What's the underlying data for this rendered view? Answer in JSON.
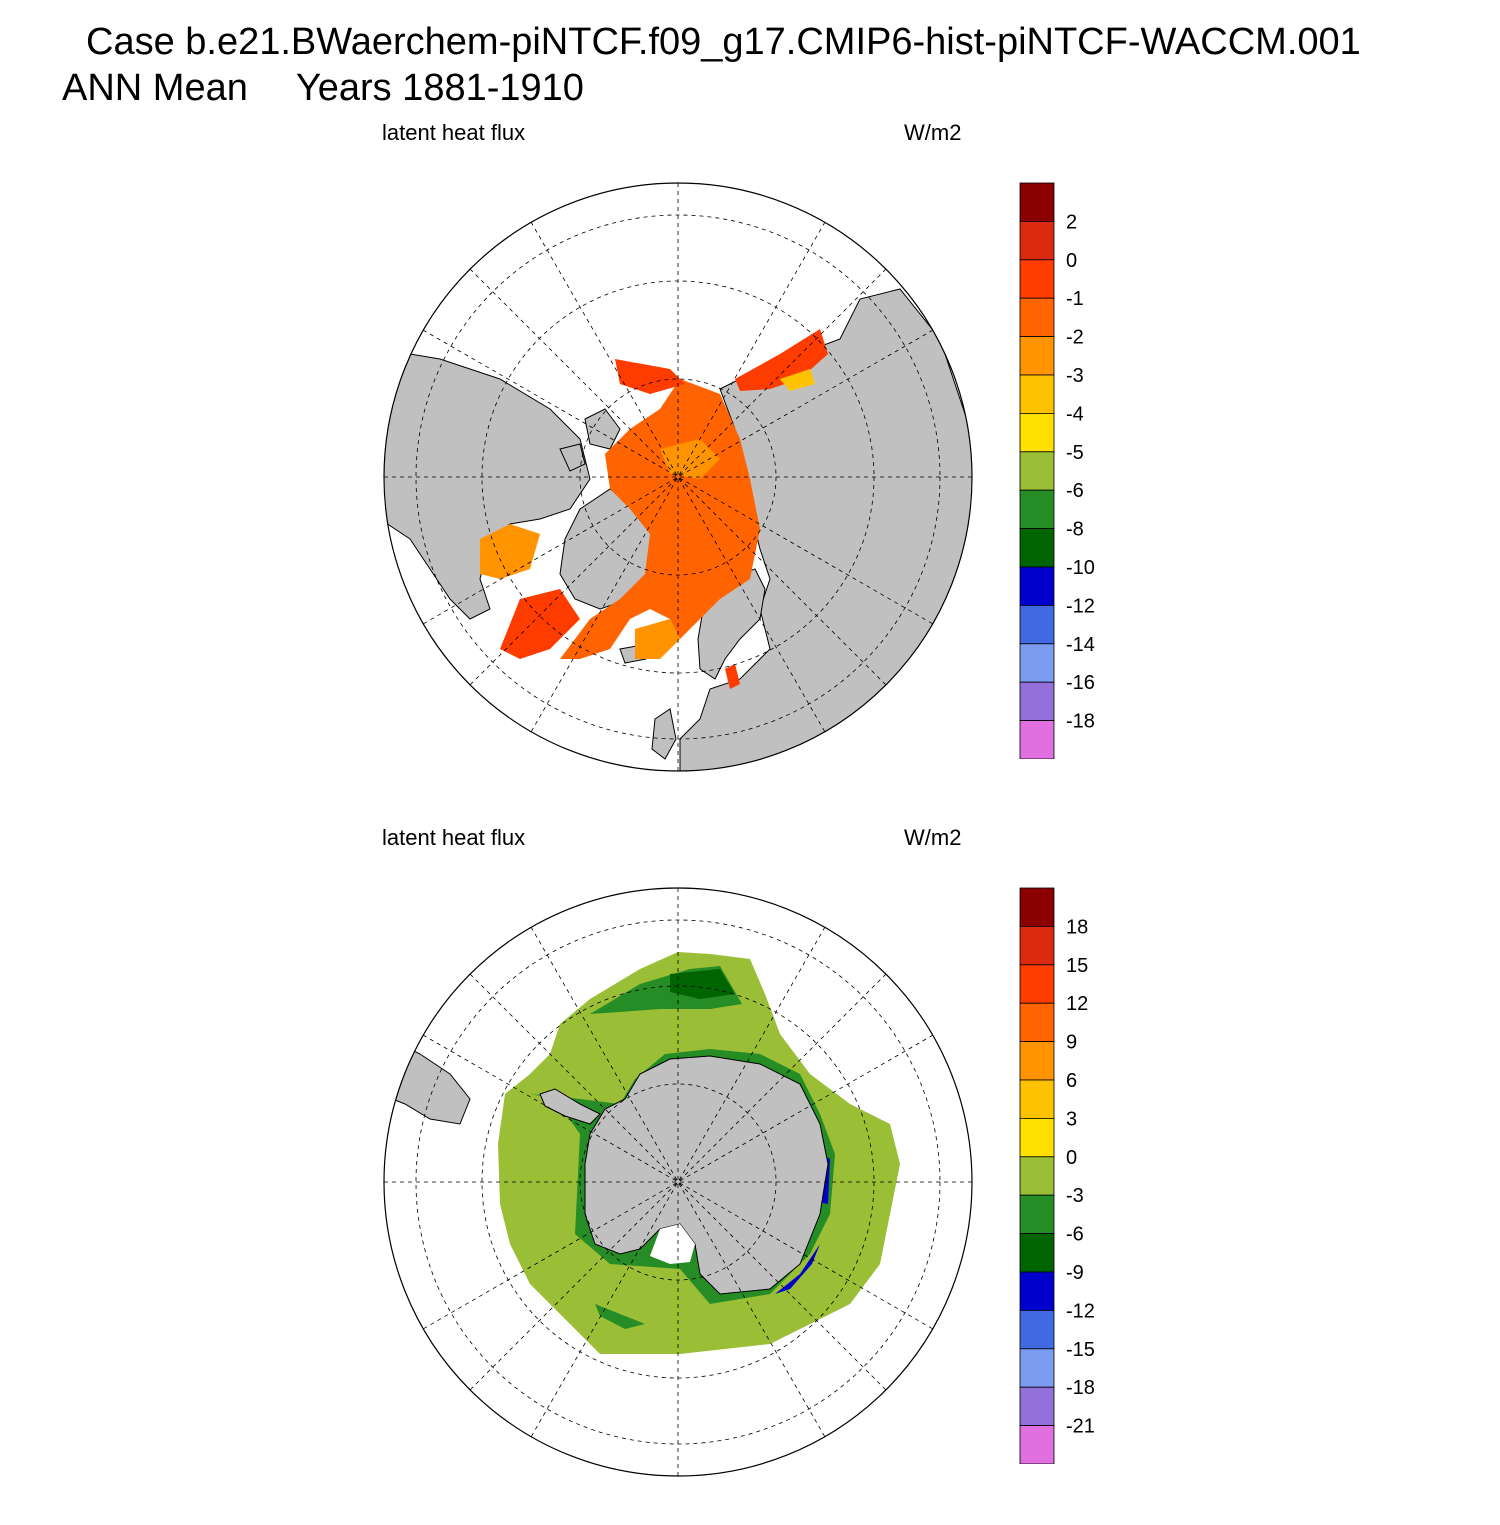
{
  "title": {
    "case_line": "Case b.e21.BWaerchem-piNTCF.f09_g17.CMIP6-hist-piNTCF-WACCM.001",
    "period_label": "ANN Mean",
    "years_label": "Years 1881-1910"
  },
  "panels": [
    {
      "hemisphere": "north",
      "left_label": "latent heat flux",
      "right_label": "W/m2",
      "colorbar": {
        "colors": [
          "#8b0000",
          "#dc2a10",
          "#ff3c00",
          "#ff6400",
          "#ff9400",
          "#ffc200",
          "#ffe000",
          "#9abe35",
          "#268c26",
          "#006400",
          "#0000cd",
          "#4169e1",
          "#7b9cf0",
          "#9370db",
          "#e070e0"
        ],
        "labels": [
          "2",
          "0",
          "-1",
          "-2",
          "-3",
          "-4",
          "-5",
          "-6",
          "-8",
          "-10",
          "-12",
          "-14",
          "-16",
          "-18"
        ]
      }
    },
    {
      "hemisphere": "south",
      "left_label": "latent heat flux",
      "right_label": "W/m2",
      "colorbar": {
        "colors": [
          "#8b0000",
          "#dc2a10",
          "#ff3c00",
          "#ff6400",
          "#ff9400",
          "#ffc200",
          "#ffe000",
          "#9abe35",
          "#268c26",
          "#006400",
          "#0000cd",
          "#4169e1",
          "#7b9cf0",
          "#9370db",
          "#e070e0"
        ],
        "labels": [
          "18",
          "15",
          "12",
          "9",
          "6",
          "3",
          "0",
          "-3",
          "-6",
          "-9",
          "-12",
          "-15",
          "-18",
          "-21"
        ]
      }
    }
  ],
  "colors": {
    "land": "#c0c0c0",
    "ocean_missing": "#ffffff"
  }
}
